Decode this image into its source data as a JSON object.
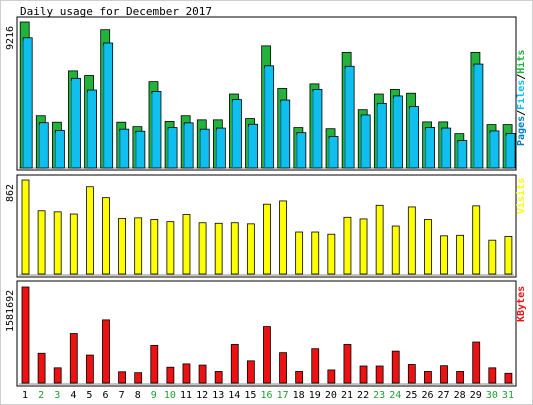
{
  "title": "Daily usage for December 2017",
  "colors": {
    "page_bg": "#ffffff",
    "panel_bg": "#ffffff",
    "hits": "#21b33c",
    "files": "#11bfef",
    "pages": "#0080c0",
    "visits": "#ffff00",
    "kbytes": "#ee1111",
    "weekday": "#000000",
    "weekend": "#1f9f30",
    "frame": "#000000"
  },
  "chart_data": [
    {
      "type": "bar",
      "panel": "hits-files-pages",
      "categories": [
        "1",
        "2",
        "3",
        "4",
        "5",
        "6",
        "7",
        "8",
        "9",
        "10",
        "11",
        "12",
        "13",
        "14",
        "15",
        "16",
        "17",
        "18",
        "19",
        "20",
        "21",
        "22",
        "23",
        "24",
        "25",
        "26",
        "27",
        "28",
        "29",
        "30",
        "31"
      ],
      "weekend": [
        false,
        true,
        true,
        false,
        false,
        false,
        false,
        false,
        true,
        true,
        false,
        false,
        false,
        false,
        false,
        true,
        true,
        false,
        false,
        false,
        false,
        false,
        true,
        true,
        false,
        false,
        false,
        false,
        false,
        true,
        true
      ],
      "ylabel_max": "9216",
      "ylim": [
        0,
        9216
      ],
      "legend": [
        "Pages",
        "/",
        "Files",
        "/",
        "Hits"
      ],
      "series": [
        {
          "name": "Hits",
          "values": [
            9216,
            3300,
            2890,
            6130,
            5840,
            8730,
            2890,
            2610,
            5450,
            2940,
            3300,
            3040,
            3040,
            4670,
            3120,
            7710,
            5020,
            2550,
            5310,
            2480,
            7300,
            3680,
            4670,
            4960,
            4720,
            2910,
            2910,
            2170,
            7300,
            2740,
            2740
          ]
        },
        {
          "name": "Files",
          "values": [
            8220,
            2860,
            2370,
            5660,
            4920,
            7890,
            2450,
            2320,
            4830,
            2550,
            2850,
            2450,
            2520,
            4320,
            2760,
            6450,
            4290,
            2230,
            4960,
            1990,
            6420,
            3350,
            4080,
            4550,
            3880,
            2560,
            2520,
            1730,
            6560,
            2340,
            2180
          ]
        },
        {
          "name": "Pages",
          "values": [
            8050,
            2700,
            2200,
            5500,
            4760,
            7720,
            2300,
            2180,
            4680,
            2420,
            2700,
            2300,
            2380,
            4180,
            2620,
            6300,
            4150,
            2100,
            4830,
            1860,
            6270,
            3200,
            3940,
            4400,
            3740,
            2420,
            2380,
            1600,
            6400,
            2200,
            2040
          ]
        }
      ]
    },
    {
      "type": "bar",
      "panel": "visits",
      "categories": [
        "1",
        "2",
        "3",
        "4",
        "5",
        "6",
        "7",
        "8",
        "9",
        "10",
        "11",
        "12",
        "13",
        "14",
        "15",
        "16",
        "17",
        "18",
        "19",
        "20",
        "21",
        "22",
        "23",
        "24",
        "25",
        "26",
        "27",
        "28",
        "29",
        "30",
        "31"
      ],
      "ylabel_max": "862",
      "ylim": [
        0,
        862
      ],
      "legend": [
        "Visits"
      ],
      "series": [
        {
          "name": "Visits",
          "values": [
            862,
            580,
            570,
            550,
            800,
            700,
            510,
            515,
            500,
            480,
            545,
            470,
            465,
            470,
            460,
            640,
            670,
            385,
            385,
            365,
            520,
            505,
            630,
            440,
            615,
            500,
            350,
            355,
            625,
            310,
            345
          ]
        }
      ]
    },
    {
      "type": "bar",
      "panel": "kbytes",
      "categories": [
        "1",
        "2",
        "3",
        "4",
        "5",
        "6",
        "7",
        "8",
        "9",
        "10",
        "11",
        "12",
        "13",
        "14",
        "15",
        "16",
        "17",
        "18",
        "19",
        "20",
        "21",
        "22",
        "23",
        "24",
        "25",
        "26",
        "27",
        "28",
        "29",
        "30",
        "31"
      ],
      "ylabel_max": "1581692",
      "ylim": [
        0,
        1581692
      ],
      "legend": [
        "KBytes"
      ],
      "series": [
        {
          "name": "KBytes",
          "values": [
            1581692,
            490000,
            250000,
            815000,
            460000,
            1040000,
            185000,
            170000,
            620000,
            260000,
            315000,
            295000,
            190000,
            635000,
            365000,
            930000,
            500000,
            190000,
            565000,
            215000,
            635000,
            280000,
            280000,
            525000,
            305000,
            190000,
            285000,
            190000,
            675000,
            250000,
            160000
          ]
        }
      ]
    }
  ]
}
